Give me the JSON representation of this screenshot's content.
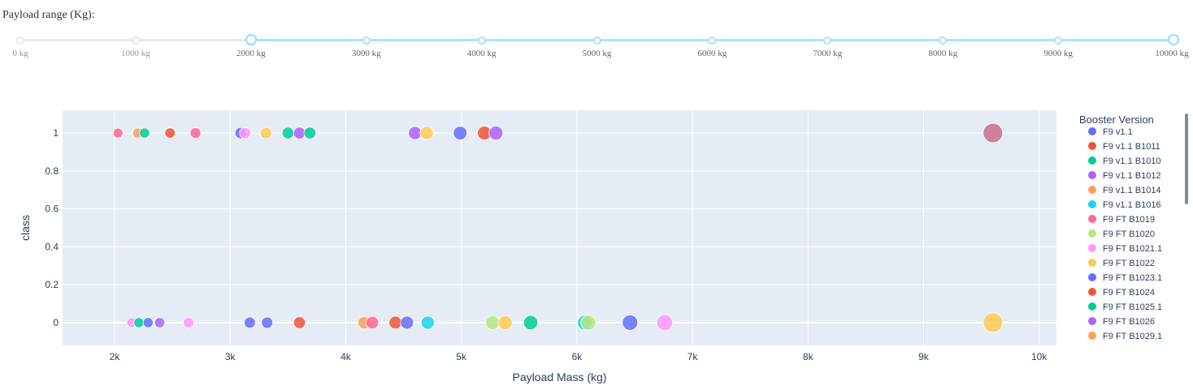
{
  "slider": {
    "label": "Payload range (Kg):",
    "min": 0,
    "max": 10000,
    "selected": [
      2000,
      10000
    ],
    "marks": [
      {
        "value": 0,
        "label": "0 kg"
      },
      {
        "value": 1000,
        "label": "1000 kg"
      },
      {
        "value": 2000,
        "label": "2000 kg"
      },
      {
        "value": 3000,
        "label": "3000 kg"
      },
      {
        "value": 4000,
        "label": "4000 kg"
      },
      {
        "value": 5000,
        "label": "5000 kg"
      },
      {
        "value": 6000,
        "label": "6000 kg"
      },
      {
        "value": 7000,
        "label": "7000 kg"
      },
      {
        "value": 8000,
        "label": "8000 kg"
      },
      {
        "value": 9000,
        "label": "9000 kg"
      },
      {
        "value": 10000,
        "label": "10000 kg"
      }
    ]
  },
  "chart_data": {
    "type": "scatter",
    "xlabel": "Payload Mass (kg)",
    "ylabel": "class",
    "xlim": [
      1550,
      10150
    ],
    "ylim": [
      -0.12,
      1.12
    ],
    "x_ticks": [
      {
        "value": 2000,
        "label": "2k"
      },
      {
        "value": 3000,
        "label": "3k"
      },
      {
        "value": 4000,
        "label": "4k"
      },
      {
        "value": 5000,
        "label": "5k"
      },
      {
        "value": 6000,
        "label": "6k"
      },
      {
        "value": 7000,
        "label": "7k"
      },
      {
        "value": 8000,
        "label": "8k"
      },
      {
        "value": 9000,
        "label": "9k"
      },
      {
        "value": 10000,
        "label": "10k"
      }
    ],
    "y_ticks": [
      {
        "value": 0,
        "label": "0"
      },
      {
        "value": 0.2,
        "label": "0.2"
      },
      {
        "value": 0.4,
        "label": "0.4"
      },
      {
        "value": 0.6,
        "label": "0.6"
      },
      {
        "value": 0.8,
        "label": "0.8"
      },
      {
        "value": 1,
        "label": "1"
      }
    ],
    "grid": true,
    "legend_title": "Booster Version",
    "legend_position": "right",
    "series": [
      {
        "name": "F9 v1.1",
        "color": "#636efa"
      },
      {
        "name": "F9 v1.1 B1011",
        "color": "#EF553B"
      },
      {
        "name": "F9 v1.1 B1010",
        "color": "#00cc96"
      },
      {
        "name": "F9 v1.1 B1012",
        "color": "#ab63fa"
      },
      {
        "name": "F9 v1.1 B1014",
        "color": "#FFA15A"
      },
      {
        "name": "F9 v1.1 B1016",
        "color": "#19d3f3"
      },
      {
        "name": "F9 FT B1019",
        "color": "#FF6692"
      },
      {
        "name": "F9 FT B1020",
        "color": "#B6E880"
      },
      {
        "name": "F9 FT B1021.1",
        "color": "#FF97FF"
      },
      {
        "name": "F9 FT B1022",
        "color": "#FECB52"
      },
      {
        "name": "F9 FT B1023.1",
        "color": "#636efa"
      },
      {
        "name": "F9 FT B1024",
        "color": "#EF553B"
      },
      {
        "name": "F9 FT B1025.1",
        "color": "#00cc96"
      },
      {
        "name": "F9 FT B1026",
        "color": "#ab63fa"
      },
      {
        "name": "F9 FT B1029.1",
        "color": "#FFA15A"
      }
    ],
    "points": [
      {
        "x": 2030,
        "y": 1,
        "color": "#FF6692"
      },
      {
        "x": 2200,
        "y": 1,
        "color": "#FFA15A"
      },
      {
        "x": 2260,
        "y": 1,
        "color": "#00cc96"
      },
      {
        "x": 2480,
        "y": 1,
        "color": "#EF553B"
      },
      {
        "x": 2700,
        "y": 1,
        "color": "#FF6692"
      },
      {
        "x": 3090,
        "y": 1,
        "color": "#636efa"
      },
      {
        "x": 3130,
        "y": 1,
        "color": "#FF97FF"
      },
      {
        "x": 3310,
        "y": 1,
        "color": "#FECB52"
      },
      {
        "x": 3500,
        "y": 1,
        "color": "#00cc96"
      },
      {
        "x": 3600,
        "y": 1,
        "color": "#ab63fa"
      },
      {
        "x": 3690,
        "y": 1,
        "color": "#00cc96"
      },
      {
        "x": 4600,
        "y": 1,
        "color": "#ab63fa"
      },
      {
        "x": 4700,
        "y": 1,
        "color": "#FECB52"
      },
      {
        "x": 4990,
        "y": 1,
        "color": "#636efa"
      },
      {
        "x": 5200,
        "y": 1,
        "color": "#EF553B"
      },
      {
        "x": 5300,
        "y": 1,
        "color": "#ab63fa"
      },
      {
        "x": 9600,
        "y": 1,
        "color": "#c56e8c"
      },
      {
        "x": 2150,
        "y": 0,
        "color": "#FF97FF"
      },
      {
        "x": 2210,
        "y": 0,
        "color": "#00cc96"
      },
      {
        "x": 2290,
        "y": 0,
        "color": "#636efa"
      },
      {
        "x": 2390,
        "y": 0,
        "color": "#ab63fa"
      },
      {
        "x": 2640,
        "y": 0,
        "color": "#FF97FF"
      },
      {
        "x": 3170,
        "y": 0,
        "color": "#636efa"
      },
      {
        "x": 3320,
        "y": 0,
        "color": "#636efa"
      },
      {
        "x": 3600,
        "y": 0,
        "color": "#EF553B"
      },
      {
        "x": 4160,
        "y": 0,
        "color": "#FFA15A"
      },
      {
        "x": 4230,
        "y": 0,
        "color": "#FF6692"
      },
      {
        "x": 4430,
        "y": 0,
        "color": "#EF553B"
      },
      {
        "x": 4530,
        "y": 0,
        "color": "#636efa"
      },
      {
        "x": 4710,
        "y": 0,
        "color": "#19d3f3"
      },
      {
        "x": 5270,
        "y": 0,
        "color": "#B6E880"
      },
      {
        "x": 5380,
        "y": 0,
        "color": "#FECB52"
      },
      {
        "x": 5600,
        "y": 0,
        "color": "#00cc96"
      },
      {
        "x": 6070,
        "y": 0,
        "color": "#19d3f3"
      },
      {
        "x": 6100,
        "y": 0,
        "color": "#B6E880"
      },
      {
        "x": 6460,
        "y": 0,
        "color": "#636efa"
      },
      {
        "x": 6760,
        "y": 0,
        "color": "#FF97FF"
      },
      {
        "x": 9600,
        "y": 0,
        "color": "#FECB52"
      }
    ]
  }
}
